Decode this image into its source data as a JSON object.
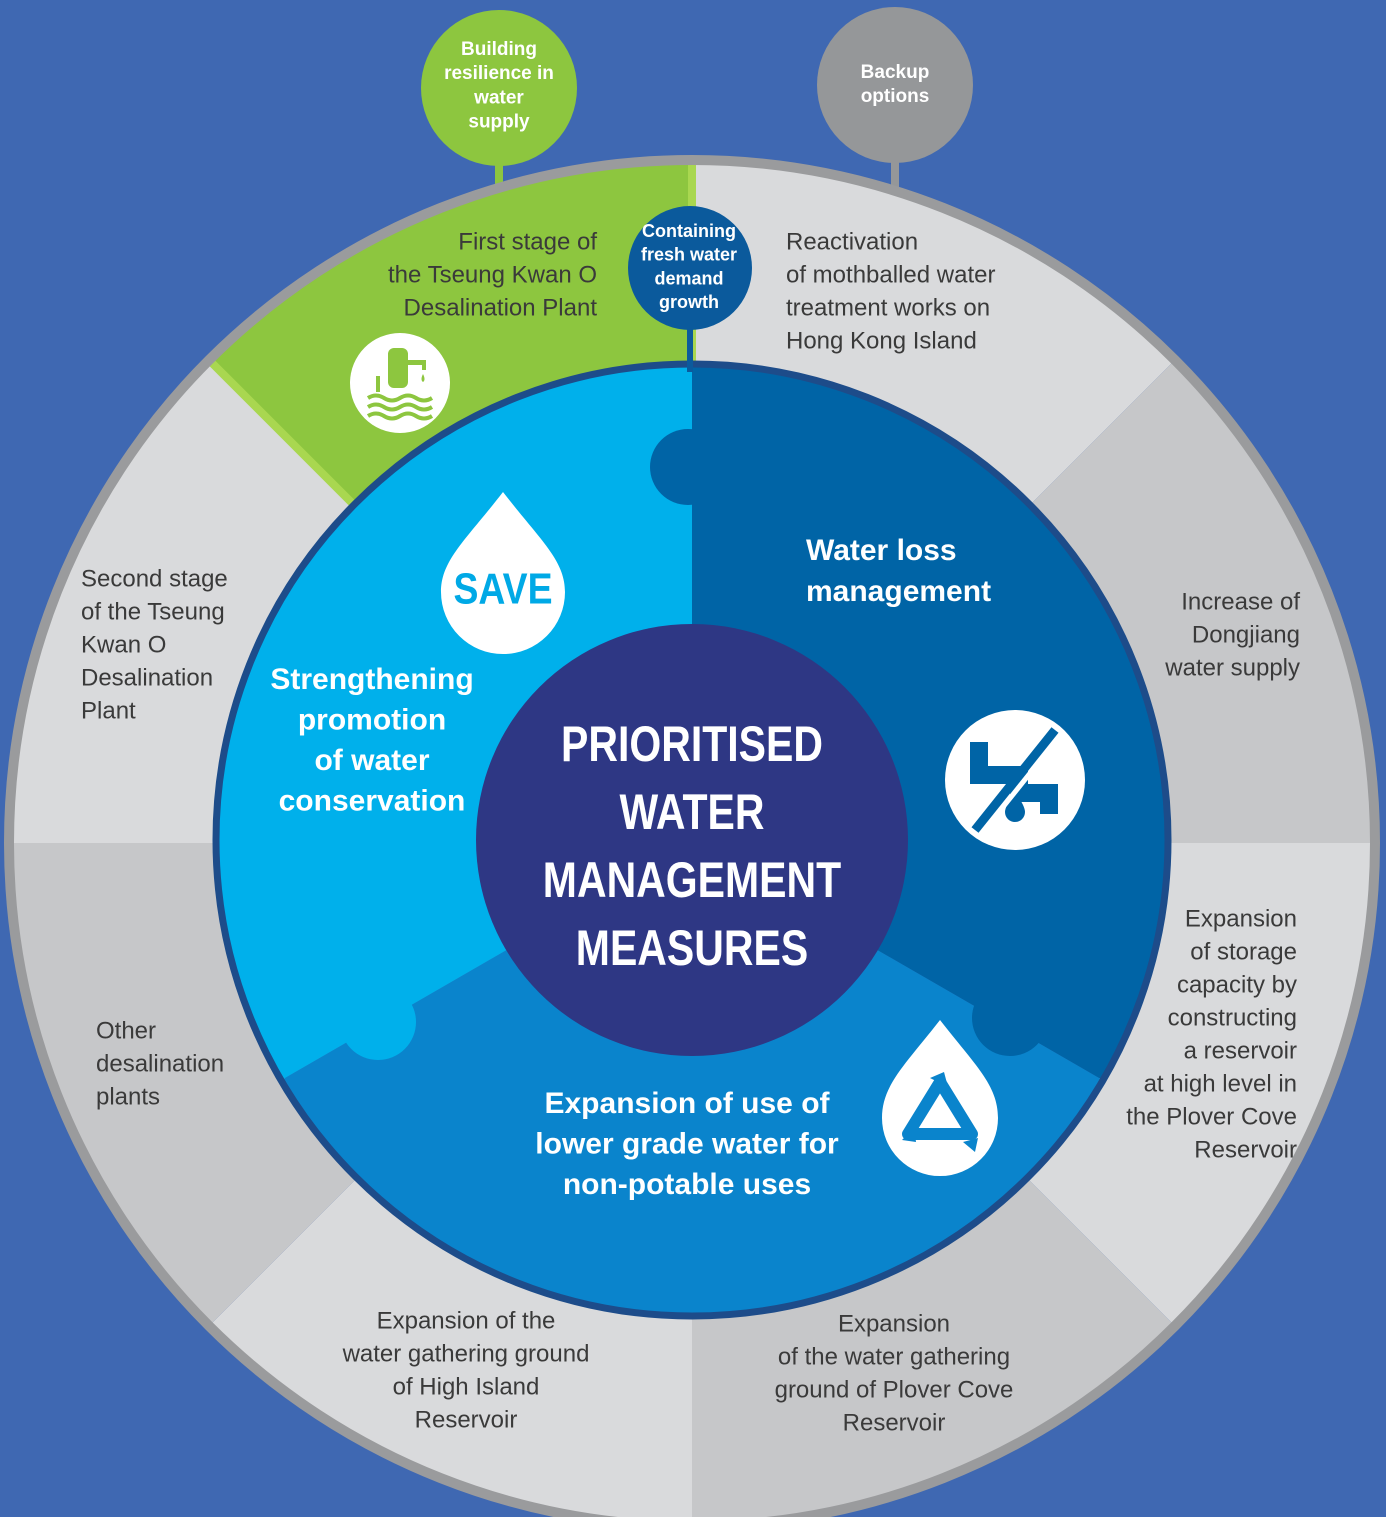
{
  "center_title": [
    "PRIORITISED",
    "WATER",
    "MANAGEMENT",
    "MEASURES"
  ],
  "categories": [
    {
      "lines": [
        "Building",
        "resilience in",
        "water",
        "supply"
      ]
    },
    {
      "lines": [
        "Backup",
        "options"
      ]
    },
    {
      "lines": [
        "Containing",
        "fresh water",
        "demand",
        "growth"
      ]
    }
  ],
  "measures": [
    {
      "lines": [
        "Water loss",
        "management"
      ]
    },
    {
      "lines": [
        "Strengthening",
        "promotion",
        "of water",
        "conservation"
      ]
    },
    {
      "lines": [
        "Expansion of use of",
        "lower grade water for",
        "non-potable uses"
      ]
    }
  ],
  "save_label": "SAVE",
  "options": [
    {
      "lines": [
        "First stage of",
        "the Tseung Kwan O",
        "Desalination Plant"
      ]
    },
    {
      "lines": [
        "Reactivation",
        "of mothballed water",
        "treatment works on",
        "Hong Kong Island"
      ]
    },
    {
      "lines": [
        "Increase of",
        "Dongjiang",
        "water supply"
      ]
    },
    {
      "lines": [
        "Expansion",
        "of storage",
        "capacity by",
        "constructing",
        "a reservoir",
        "at high level in",
        "the Plover Cove",
        "Reservoir"
      ]
    },
    {
      "lines": [
        "Expansion",
        "of the water gathering",
        "ground of Plover Cove",
        "Reservoir"
      ]
    },
    {
      "lines": [
        "Expansion of the",
        "water gathering ground",
        "of High Island",
        "Reservoir"
      ]
    },
    {
      "lines": [
        "Other",
        "desalination",
        "plants"
      ]
    },
    {
      "lines": [
        "Second stage",
        "of the Tseung",
        "Kwan O",
        "Desalination",
        "Plant"
      ]
    }
  ]
}
